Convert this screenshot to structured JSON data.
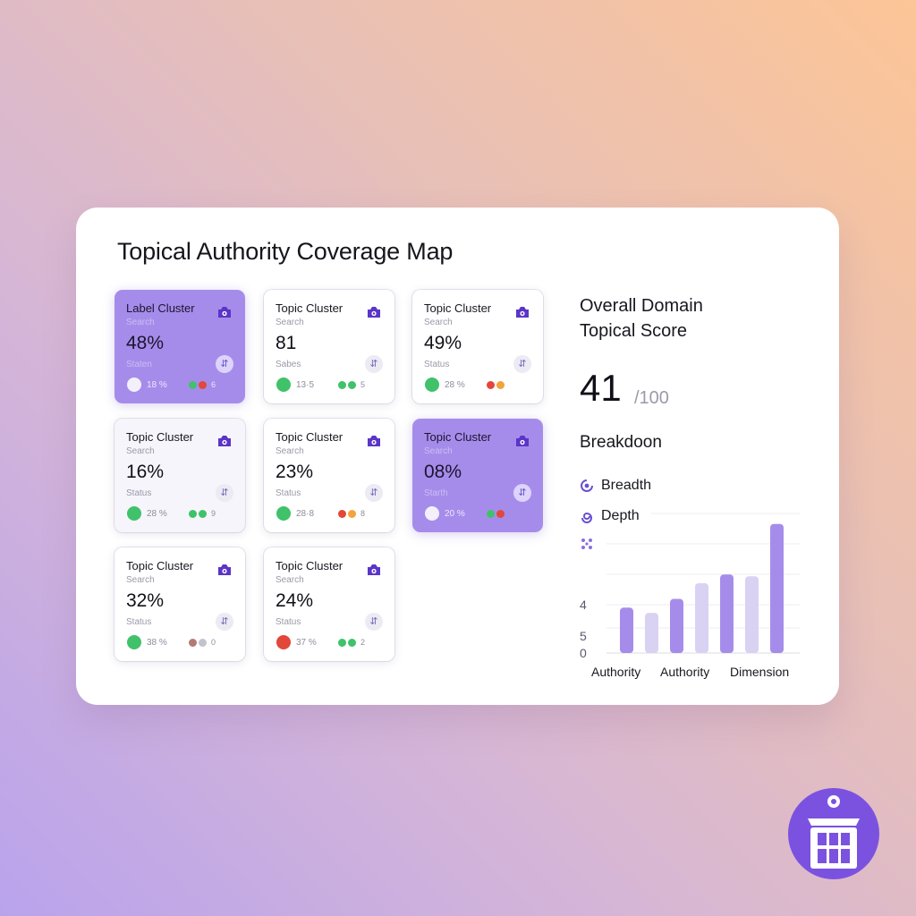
{
  "title": "Topical Authority Coverage Map",
  "colors": {
    "accent": "#a68cea",
    "accent_dark": "#5b35c7",
    "green": "#3fc26a",
    "red": "#e2473a",
    "orange": "#f2a33a",
    "gray": "#c4c3cc"
  },
  "clusters": [
    {
      "title": "Label Cluster",
      "sub": "Search",
      "value": "48%",
      "status": "Staten",
      "pct": "18 %",
      "count": "6",
      "highlight": true,
      "dot": "#f3f0fb",
      "mini": [
        "#3fc26a",
        "#e2473a"
      ],
      "icon": "camera-icon"
    },
    {
      "title": "Topic Cluster",
      "sub": "Search",
      "value": "81",
      "status": "Sabes",
      "pct": "13·5",
      "count": "5",
      "highlight": false,
      "dot": "#3fc26a",
      "mini": [
        "#3fc26a",
        "#3fc26a"
      ],
      "icon": "camera-icon"
    },
    {
      "title": "Topic Cluster",
      "sub": "Search",
      "value": "49%",
      "status": "Status",
      "pct": "28 %",
      "count": "",
      "highlight": false,
      "dot": "#3fc26a",
      "mini": [
        "#e2473a",
        "#f2a33a"
      ],
      "icon": "camera-icon"
    },
    {
      "title": "Topic Cluster",
      "sub": "Search",
      "value": "16%",
      "status": "Status",
      "pct": "28 %",
      "count": "9",
      "highlight": false,
      "tint": true,
      "dot": "#3fc26a",
      "mini": [
        "#3fc26a",
        "#3fc26a"
      ],
      "icon": "camera-icon"
    },
    {
      "title": "Topic Cluster",
      "sub": "Search",
      "value": "23%",
      "status": "Status",
      "pct": "28·8",
      "count": "8",
      "highlight": false,
      "dot": "#3fc26a",
      "mini": [
        "#e2473a",
        "#f2a33a"
      ],
      "icon": "camera-icon"
    },
    {
      "title": "Topic Cluster",
      "sub": "Search",
      "value": "08%",
      "status": "Starth",
      "pct": "20 %",
      "count": "",
      "highlight": true,
      "dot": "#f3f0fb",
      "mini": [
        "#3fc26a",
        "#e2473a"
      ],
      "icon": "camera-icon"
    },
    {
      "title": "Topic Cluster",
      "sub": "Search",
      "value": "32%",
      "status": "Status",
      "pct": "38 %",
      "count": "0",
      "highlight": false,
      "dot": "#3fc26a",
      "mini": [
        "#b37a74",
        "#c4c3cc"
      ],
      "icon": "camera-icon"
    },
    {
      "title": "Topic Cluster",
      "sub": "Search",
      "value": "24%",
      "status": "Status",
      "pct": "37 %",
      "count": "2",
      "highlight": false,
      "dot": "#e2473a",
      "mini": [
        "#3fc26a",
        "#3fc26a"
      ],
      "icon": "camera-icon"
    }
  ],
  "score": {
    "title_line1": "Overall Domain",
    "title_line2": "Topical Score",
    "value": "41",
    "max": "/100"
  },
  "breakdown": {
    "title": "Breakdoon",
    "legend": [
      {
        "label": "Breadth",
        "icon": "target-icon"
      },
      {
        "label": "Depth",
        "icon": "spiral-icon"
      }
    ]
  },
  "chart_data": {
    "type": "bar",
    "title": "Breakdoon",
    "ytick_labels": [
      "4",
      "5",
      "0"
    ],
    "xtick_labels": [
      "Authority",
      "Authority",
      "Dimension"
    ],
    "values": [
      2.6,
      2.3,
      3.1,
      4.0,
      4.5,
      4.4,
      7.4
    ],
    "ylim": [
      0,
      8
    ],
    "bar_colors": [
      "#a68cea",
      "#d9d2f3",
      "#a68cea",
      "#d9d2f3",
      "#a68cea",
      "#d9d2f3",
      "#a68cea"
    ]
  }
}
